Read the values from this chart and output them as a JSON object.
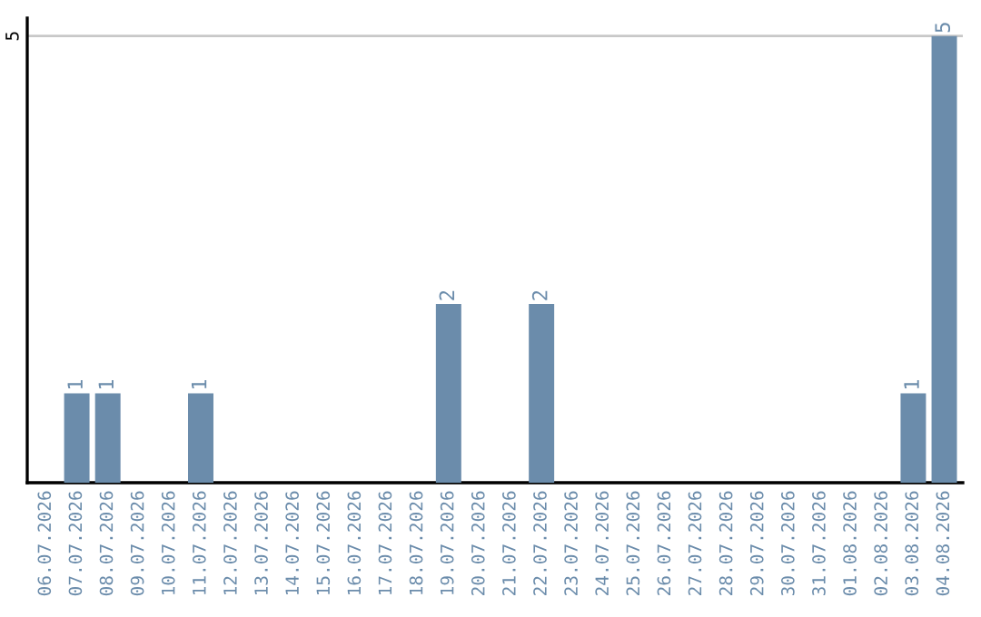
{
  "chart_data": {
    "type": "bar",
    "categories": [
      "06.07.2026",
      "07.07.2026",
      "08.07.2026",
      "09.07.2026",
      "10.07.2026",
      "11.07.2026",
      "12.07.2026",
      "13.07.2026",
      "14.07.2026",
      "15.07.2026",
      "16.07.2026",
      "17.07.2026",
      "18.07.2026",
      "19.07.2026",
      "20.07.2026",
      "21.07.2026",
      "22.07.2026",
      "23.07.2026",
      "24.07.2026",
      "25.07.2026",
      "26.07.2026",
      "27.07.2026",
      "28.07.2026",
      "29.07.2026",
      "30.07.2026",
      "31.07.2026",
      "01.08.2026",
      "02.08.2026",
      "03.08.2026",
      "04.08.2026"
    ],
    "values": [
      0,
      1,
      1,
      0,
      0,
      1,
      0,
      0,
      0,
      0,
      0,
      0,
      0,
      2,
      0,
      0,
      2,
      0,
      0,
      0,
      0,
      0,
      0,
      0,
      0,
      0,
      0,
      0,
      1,
      5
    ],
    "value_labels": [
      null,
      "1",
      "1",
      null,
      null,
      "1",
      null,
      null,
      null,
      null,
      null,
      null,
      null,
      "2",
      null,
      null,
      "2",
      null,
      null,
      null,
      null,
      null,
      null,
      null,
      null,
      null,
      null,
      null,
      "1",
      "5"
    ],
    "color": "#6b8cab",
    "ylim": [
      0,
      5.2
    ],
    "yticks": [
      5
    ],
    "grid": "y"
  }
}
